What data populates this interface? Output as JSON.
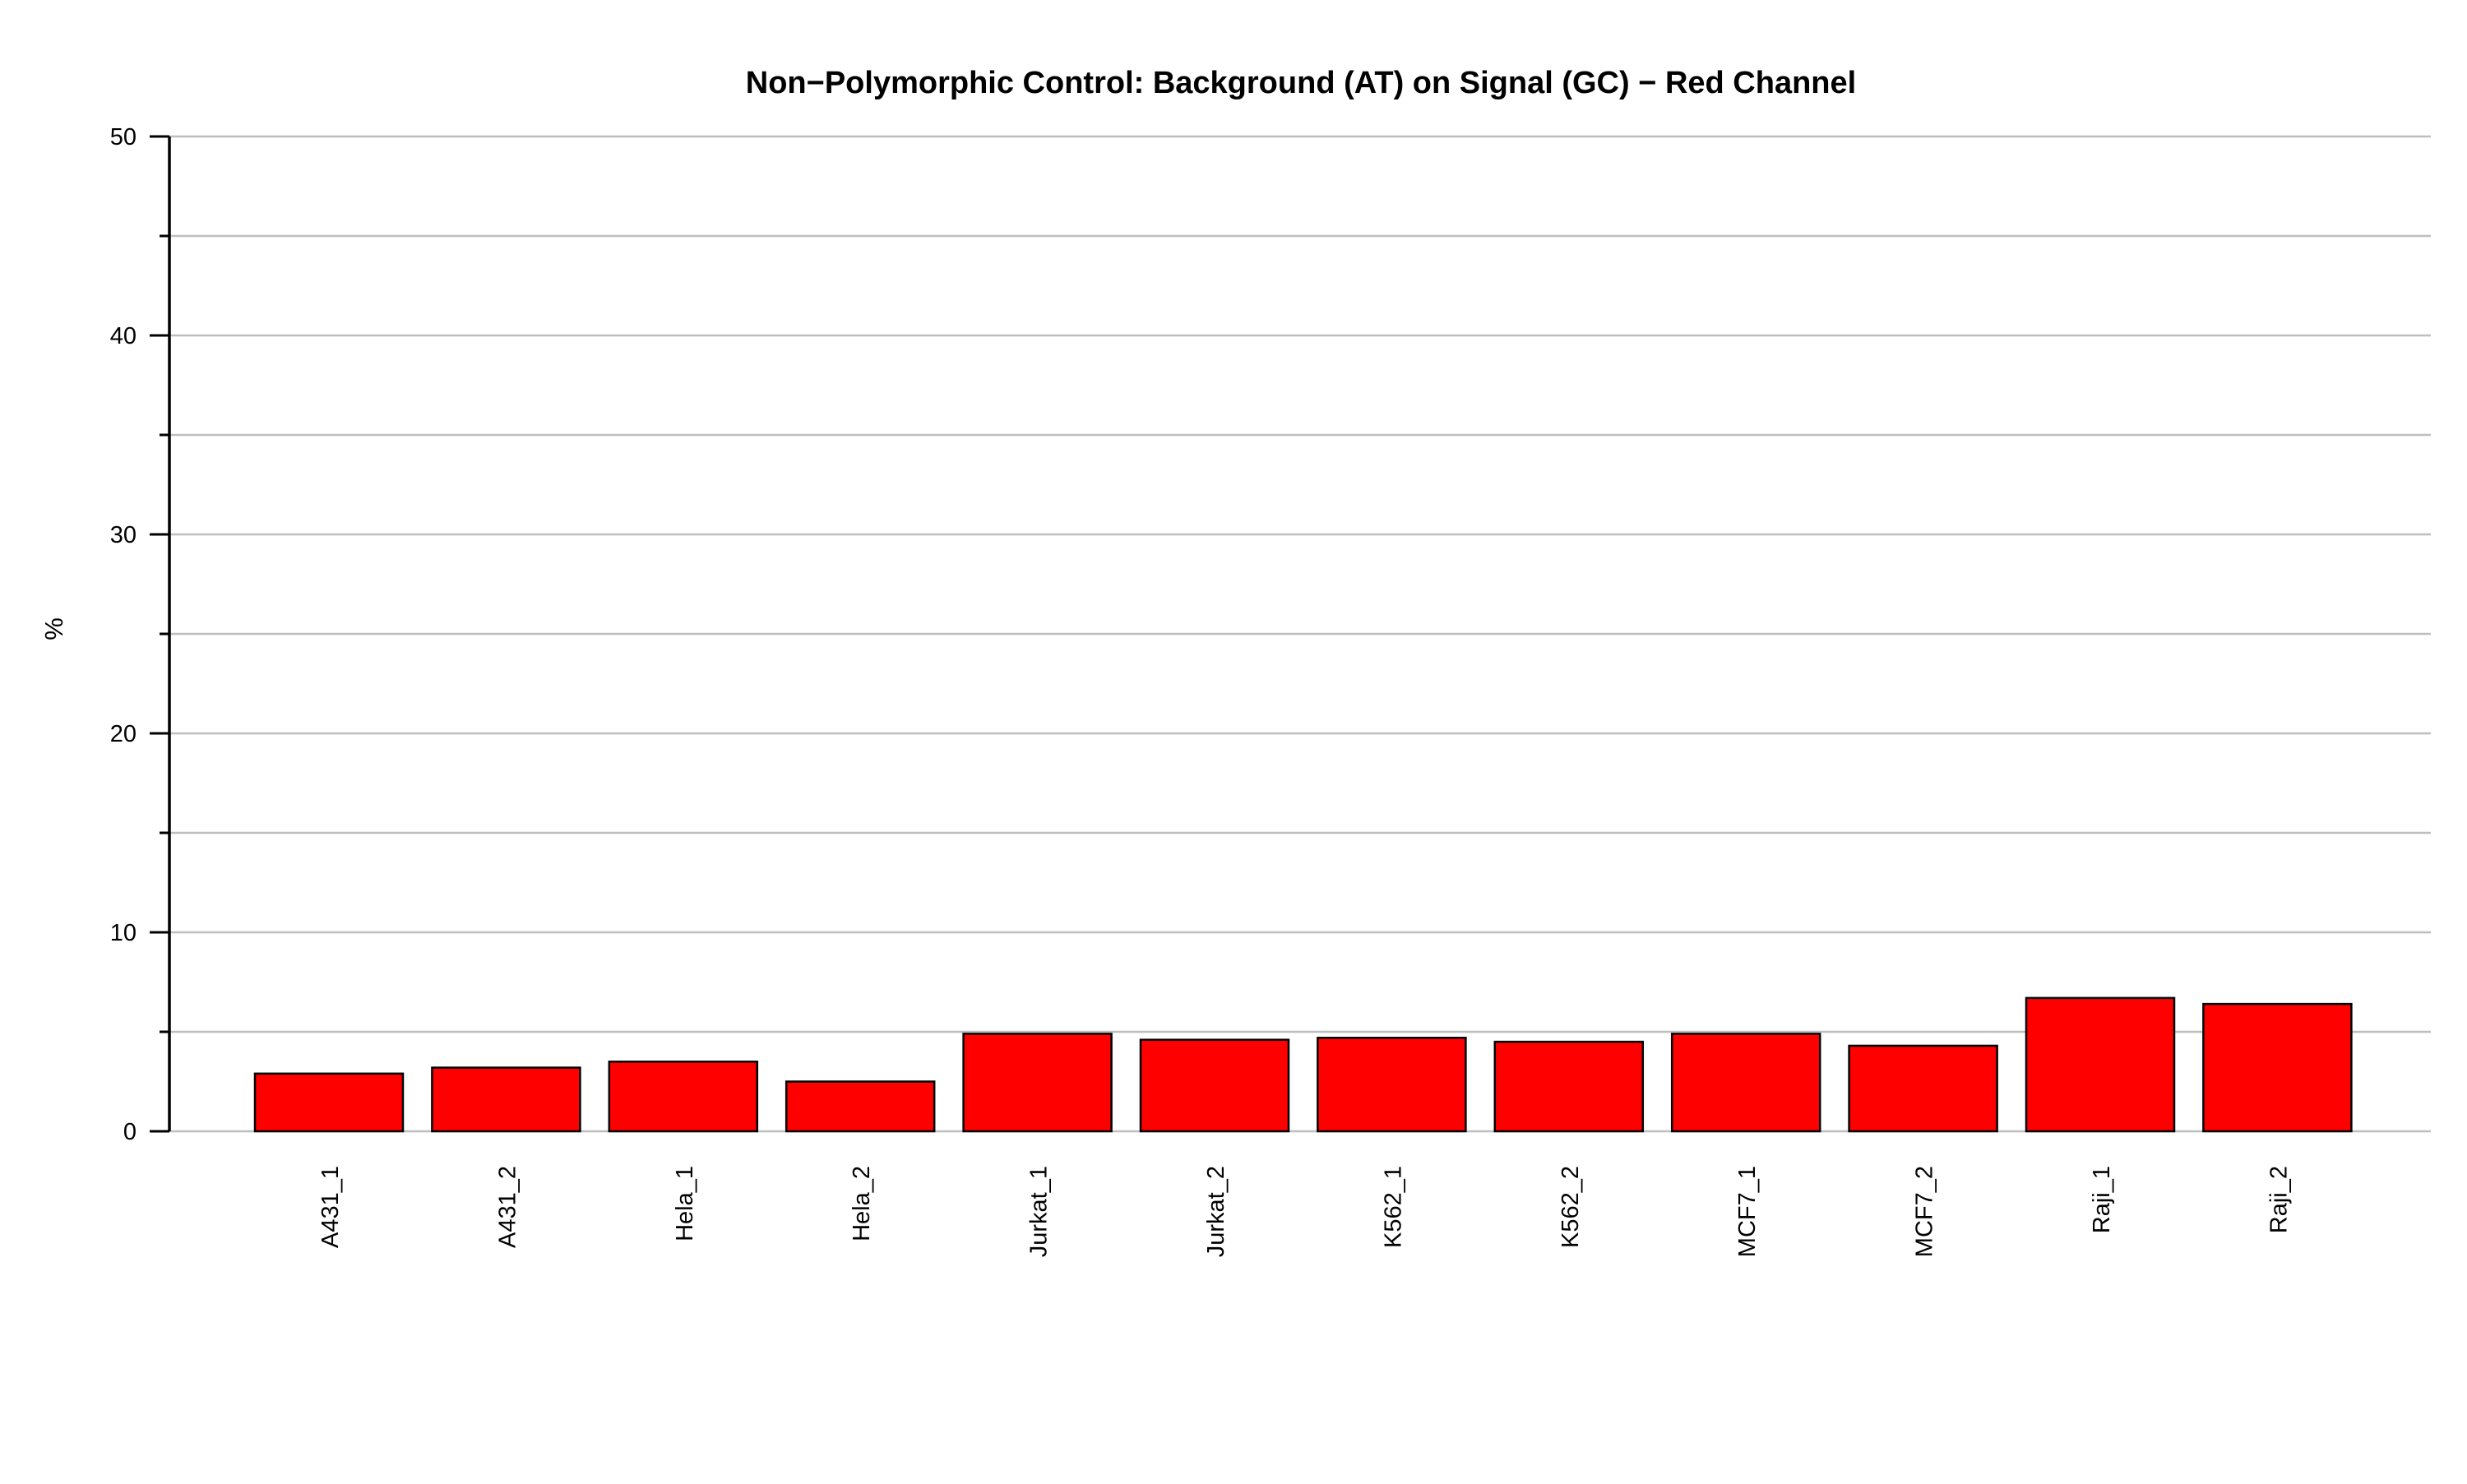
{
  "chart_data": {
    "type": "bar",
    "title": "Non−Polymorphic Control: Background (AT) on Signal (GC) − Red Channel",
    "xlabel": "",
    "ylabel": "%",
    "ylim": [
      0,
      50
    ],
    "y_ticks": [
      0,
      10,
      20,
      30,
      40,
      50
    ],
    "y_tick_labels": [
      "0",
      "10",
      "20",
      "30",
      "40",
      "50"
    ],
    "gridlines": [
      5,
      10,
      15,
      20,
      25,
      30,
      35,
      40,
      45,
      50
    ],
    "grid": true,
    "legend": "none",
    "categories": [
      "A431_1",
      "A431_2",
      "Hela_1",
      "Hela_2",
      "Jurkat_1",
      "Jurkat_2",
      "K562_1",
      "K562_2",
      "MCF7_1",
      "MCF7_2",
      "Raji_1",
      "Raji_2"
    ],
    "values": [
      2.9,
      3.2,
      3.5,
      2.5,
      4.9,
      4.6,
      4.7,
      4.5,
      4.9,
      4.3,
      6.7,
      6.4
    ],
    "colors": {
      "bar_fill": "#ff0000",
      "bar_stroke": "#000000",
      "grid": "#bebebe",
      "axis": "#000000"
    }
  }
}
